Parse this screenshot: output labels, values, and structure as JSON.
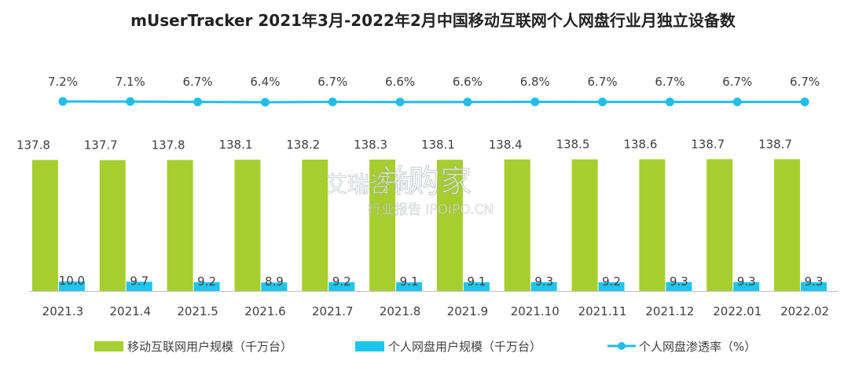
{
  "title": "mUserTracker 2021年3月-2022年2月中国移动互联网个人网盘行业月独立设备数",
  "watermark": {
    "main": "艾瑞咨询",
    "brand": "并购家",
    "sub": "行业报告 IPOIPO.CN"
  },
  "colors": {
    "green": "#A6CE2F",
    "blue": "#1EC5EE",
    "line": "#22BDE8",
    "text": "#404040",
    "axis": "#BFBFBF"
  },
  "chart_data": {
    "type": "bar",
    "categories": [
      "2021.3",
      "2021.4",
      "2021.5",
      "2021.6",
      "2021.7",
      "2021.8",
      "2021.9",
      "2021.10",
      "2021.11",
      "2021.12",
      "2022.01",
      "2022.02"
    ],
    "series": [
      {
        "name": "移动互联网用户规模（千万台）",
        "type": "bar",
        "values": [
          137.8,
          137.7,
          137.8,
          138.1,
          138.2,
          138.3,
          138.1,
          138.4,
          138.5,
          138.6,
          138.7,
          138.7
        ],
        "labels": [
          "137.8",
          "137.7",
          "137.8",
          "138.1",
          "138.2",
          "138.3",
          "138.1",
          "138.4",
          "138.5",
          "138.6",
          "138.7",
          "138.7"
        ]
      },
      {
        "name": "个人网盘用户规模（千万台）",
        "type": "bar",
        "values": [
          10.0,
          9.7,
          9.2,
          8.9,
          9.2,
          9.1,
          9.1,
          9.3,
          9.2,
          9.3,
          9.3,
          9.3
        ],
        "labels": [
          "10.0",
          "9.7",
          "9.2",
          "8.9",
          "9.2",
          "9.1",
          "9.1",
          "9.3",
          "9.2",
          "9.3",
          "9.3",
          "9.3"
        ]
      },
      {
        "name": "个人网盘渗透率（%）",
        "type": "line",
        "values": [
          7.2,
          7.1,
          6.7,
          6.4,
          6.7,
          6.6,
          6.6,
          6.8,
          6.7,
          6.7,
          6.7,
          6.7
        ],
        "labels": [
          "7.2%",
          "7.1%",
          "6.7%",
          "6.4%",
          "6.7%",
          "6.6%",
          "6.6%",
          "6.8%",
          "6.7%",
          "6.7%",
          "6.7%",
          "6.7%"
        ]
      }
    ],
    "legend_position": "bottom",
    "grid": false
  }
}
